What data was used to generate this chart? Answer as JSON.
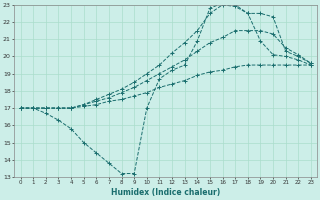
{
  "xlabel": "Humidex (Indice chaleur)",
  "xlim": [
    -0.5,
    23.5
  ],
  "ylim": [
    13,
    23
  ],
  "xticks": [
    0,
    1,
    2,
    3,
    4,
    5,
    6,
    7,
    8,
    9,
    10,
    11,
    12,
    13,
    14,
    15,
    16,
    17,
    18,
    19,
    20,
    21,
    22,
    23
  ],
  "yticks": [
    13,
    14,
    15,
    16,
    17,
    18,
    19,
    20,
    21,
    22,
    23
  ],
  "bg_color": "#cceee8",
  "grid_color": "#aaddcc",
  "line_color": "#1a6e6e",
  "lines": [
    {
      "x": [
        0,
        1,
        2,
        3,
        4,
        5,
        6,
        7,
        8,
        9,
        10,
        11,
        12,
        13,
        14,
        15,
        16,
        17,
        18,
        19,
        20,
        21,
        22,
        23
      ],
      "y": [
        17,
        17,
        16.7,
        16.3,
        15.8,
        15.0,
        14.4,
        13.8,
        13.2,
        13.2,
        17.0,
        18.7,
        19.2,
        19.5,
        20.9,
        22.8,
        23.1,
        23.0,
        22.5,
        20.9,
        20.1,
        20.0,
        19.8,
        19.5
      ]
    },
    {
      "x": [
        0,
        1,
        2,
        3,
        4,
        5,
        6,
        7,
        8,
        9,
        10,
        11,
        12,
        13,
        14,
        15,
        16,
        17,
        18,
        19,
        20,
        21,
        22,
        23
      ],
      "y": [
        17,
        17,
        17,
        17,
        17,
        17.1,
        17.2,
        17.4,
        17.5,
        17.7,
        17.9,
        18.2,
        18.4,
        18.6,
        18.9,
        19.1,
        19.2,
        19.4,
        19.5,
        19.5,
        19.5,
        19.5,
        19.5,
        19.5
      ]
    },
    {
      "x": [
        0,
        1,
        2,
        3,
        4,
        5,
        6,
        7,
        8,
        9,
        10,
        11,
        12,
        13,
        14,
        15,
        16,
        17,
        18,
        19,
        20,
        21,
        22,
        23
      ],
      "y": [
        17,
        17,
        17,
        17,
        17,
        17.2,
        17.4,
        17.6,
        17.9,
        18.2,
        18.6,
        19.0,
        19.4,
        19.8,
        20.3,
        20.8,
        21.1,
        21.5,
        21.5,
        21.5,
        21.3,
        20.5,
        20.1,
        19.6
      ]
    },
    {
      "x": [
        0,
        1,
        2,
        3,
        4,
        5,
        6,
        7,
        8,
        9,
        10,
        11,
        12,
        13,
        14,
        15,
        16,
        17,
        18,
        19,
        20,
        21,
        22,
        23
      ],
      "y": [
        17,
        17,
        17,
        17,
        17,
        17.2,
        17.5,
        17.8,
        18.1,
        18.5,
        19.0,
        19.5,
        20.2,
        20.8,
        21.5,
        22.5,
        23.0,
        22.9,
        22.5,
        22.5,
        22.3,
        20.3,
        20.0,
        19.6
      ]
    }
  ]
}
